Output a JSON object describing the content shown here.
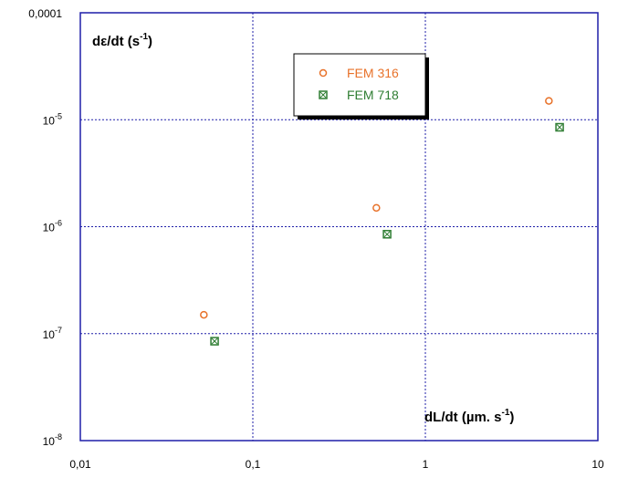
{
  "chart_data": {
    "type": "scatter",
    "xscale": "log",
    "yscale": "log",
    "xlim": [
      0.01,
      10
    ],
    "ylim": [
      1e-08,
      0.0001
    ],
    "grid": true,
    "legend_position": "top-center",
    "x_ticks": [
      "0,01",
      "0,1",
      "1",
      "10"
    ],
    "y_ticks": [
      {
        "base": "0,0001",
        "exp": ""
      },
      {
        "base": "10",
        "exp": "-5"
      },
      {
        "base": "10",
        "exp": "-6"
      },
      {
        "base": "10",
        "exp": "-7"
      },
      {
        "base": "10",
        "exp": "-8"
      }
    ],
    "ylabel": {
      "text": "dε/dt (s",
      "sup": "-1",
      "close": ")"
    },
    "xlabel": {
      "text": "dL/dt  (µm. s",
      "sup": "-1",
      "close": ")"
    },
    "series": [
      {
        "name": "FEM 316",
        "color": "#e8722a",
        "marker": "circle",
        "x": [
          0.052,
          0.52,
          5.2
        ],
        "y": [
          1.5e-07,
          1.5e-06,
          1.5e-05
        ]
      },
      {
        "name": "FEM 718",
        "color": "#2e7d32",
        "marker": "square-x",
        "x": [
          0.06,
          0.6,
          6.0
        ],
        "y": [
          8.5e-08,
          8.5e-07,
          8.5e-06
        ]
      }
    ]
  }
}
